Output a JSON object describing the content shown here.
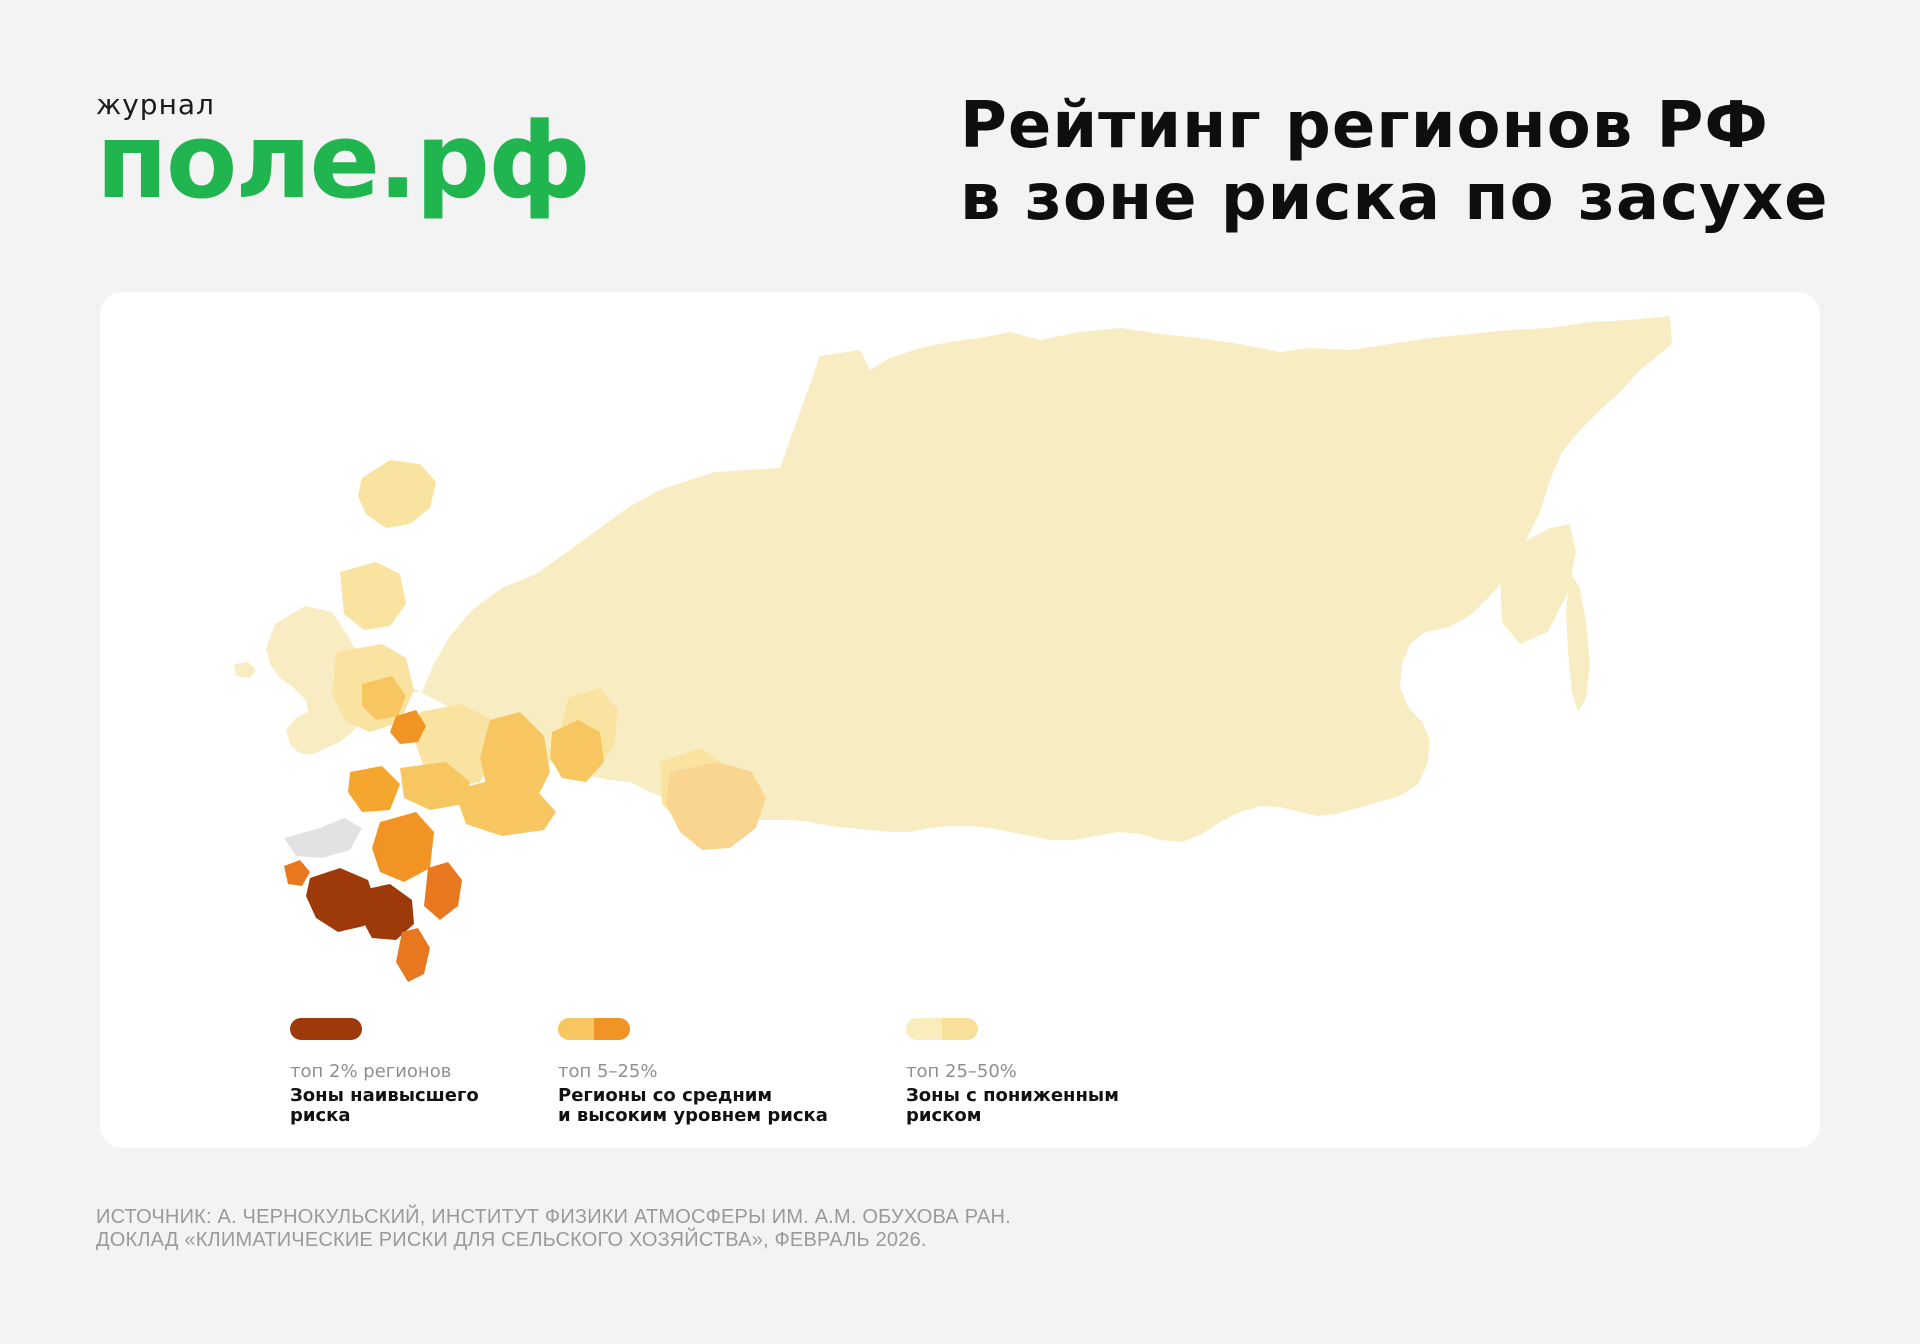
{
  "logo": {
    "small": "журнал",
    "main": "поле.рф"
  },
  "title": {
    "line1": "Рейтинг регионов РФ",
    "line2": "в зоне риска по засухе"
  },
  "colors": {
    "background": "#f3f3f3",
    "brand_green": "#20b54f",
    "very_low": "#f8edc2",
    "low": "#fae3a1",
    "mid_light": "#f7c660",
    "mid": "#f4a62e",
    "high": "#e8781f",
    "high_dark": "#d05a18",
    "top": "#9e3a0a",
    "no_data": "#e2e2e2"
  },
  "map": {
    "description_hidden": false,
    "risk_classes": [
      {
        "class": "top",
        "color": "#9e3a0a"
      },
      {
        "class": "high",
        "color": "#e8781f"
      },
      {
        "class": "mid",
        "color": "#f4a62e"
      },
      {
        "class": "mid_light",
        "color": "#f7c660"
      },
      {
        "class": "low",
        "color": "#fae3a1"
      },
      {
        "class": "very_low",
        "color": "#f8edc2"
      },
      {
        "class": "no_data",
        "color": "#e2e2e2"
      }
    ]
  },
  "legend": [
    {
      "range": "топ 2% регионов",
      "desc_line1": "Зоны наивысшего",
      "desc_line2": "риска",
      "colors": [
        "#9e3a0a"
      ]
    },
    {
      "range": "топ 5–25%",
      "desc_line1": "Регионы со средним",
      "desc_line2": "и высоким уровнем риска",
      "colors": [
        "#f7c660",
        "#f19423"
      ]
    },
    {
      "range": "топ 25–50%",
      "desc_line1": "Зоны с пониженным",
      "desc_line2": "риском",
      "colors": [
        "#f9edbe",
        "#f8e09a"
      ]
    }
  ],
  "source": {
    "line1": "ИСТОЧНИК: А. ЧЕРНОКУЛЬСКИЙ, ИНСТИТУТ ФИЗИКИ АТМОСФЕРЫ ИМ. А.М. ОБУХОВА РАН.",
    "line2": "ДОКЛАД «КЛИМАТИЧЕСКИЕ РИСКИ ДЛЯ СЕЛЬСКОГО ХОЗЯЙСТВА», ФЕВРАЛЬ 2026."
  }
}
